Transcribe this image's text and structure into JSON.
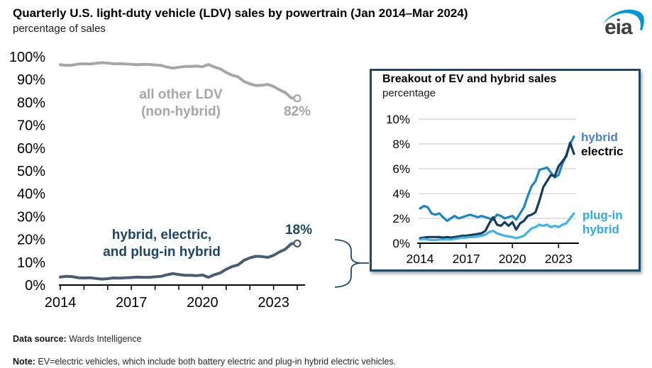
{
  "header": {
    "title": "Quarterly U.S. light-duty vehicle (LDV) sales by powertrain (Jan 2014–Mar 2024)",
    "subtitle": "percentage of sales",
    "logo": "eia"
  },
  "colors": {
    "logo_swoosh": "#0096d7",
    "axis": "#000000",
    "grid": "#d9d9d9",
    "inset_border": "#1d4a66",
    "all_other_line": "#a6a6a6",
    "combined_line": "#4a5b73",
    "combined_label": "#1c4566",
    "hybrid_line": "#1b85c6",
    "hybrid_label": "#4e81c2",
    "electric_line": "#17395c",
    "electric_label": "#000000",
    "plugin_line": "#3fb3e6",
    "plugin_label": "#2fa9e1"
  },
  "chart_data": [
    {
      "id": "main",
      "type": "line",
      "title": "Quarterly U.S. light-duty vehicle (LDV) sales by powertrain (Jan 2014–Mar 2024)",
      "ylabel": "percentage of sales",
      "x_start": 2014.0,
      "x_step_years": 0.25,
      "xlim": [
        2014,
        2024.25
      ],
      "ylim": [
        0,
        100
      ],
      "ytick_step": 10,
      "ytick_suffix": "%",
      "grid": false,
      "xtick_years": [
        2014,
        2015,
        2016,
        2017,
        2018,
        2019,
        2020,
        2021,
        2022,
        2023,
        2024
      ],
      "xtick_label_years": [
        2014,
        2017,
        2020,
        2023
      ],
      "series": [
        {
          "key": "all-other-ldv",
          "name": "all other LDV (non-hybrid)",
          "label_lines": [
            "all other LDV",
            "(non-hybrid)"
          ],
          "end_label": "82%",
          "color": "#a6a6a6",
          "values": [
            96.5,
            96.2,
            96.3,
            96.8,
            96.9,
            96.8,
            97.1,
            97.4,
            97.2,
            96.9,
            97.0,
            96.8,
            96.7,
            96.5,
            96.6,
            96.6,
            96.4,
            96.2,
            95.5,
            95.0,
            95.4,
            95.7,
            95.7,
            95.9,
            95.6,
            96.6,
            95.5,
            94.7,
            93.1,
            91.9,
            91.2,
            89.2,
            88.1,
            87.4,
            87.5,
            87.9,
            87.0,
            85.5,
            84.3,
            81.9,
            81.8
          ]
        },
        {
          "key": "hybrid-electric-plugin",
          "name": "hybrid, electric, and plug-in hybrid",
          "label_lines": [
            "hybrid, electric,",
            "and plug-in hybrid"
          ],
          "end_label": "18%",
          "color": "#4a5b73",
          "values": [
            3.5,
            3.8,
            3.7,
            3.2,
            3.1,
            3.2,
            2.9,
            2.6,
            2.8,
            3.1,
            3.0,
            3.2,
            3.3,
            3.5,
            3.4,
            3.4,
            3.6,
            3.8,
            4.5,
            5.0,
            4.6,
            4.3,
            4.3,
            4.1,
            4.4,
            3.4,
            4.5,
            5.3,
            6.9,
            8.1,
            8.8,
            10.8,
            11.9,
            12.6,
            12.5,
            12.1,
            13.0,
            14.5,
            15.7,
            18.1,
            18.2
          ]
        }
      ]
    },
    {
      "id": "inset",
      "type": "line",
      "title": "Breakout of EV and hybrid sales",
      "subtitle": "percentage",
      "x_start": 2014.0,
      "x_step_years": 0.25,
      "xlim": [
        2014,
        2024.25
      ],
      "ylim": [
        0,
        10
      ],
      "ytick_step": 2,
      "ytick_suffix": "%",
      "grid": true,
      "xtick_years": [
        2014,
        2017,
        2020,
        2023
      ],
      "xtick_label_years": [
        2014,
        2017,
        2020,
        2023
      ],
      "series": [
        {
          "key": "hybrid",
          "name": "hybrid",
          "label_lines": [
            "hybrid"
          ],
          "color": "#1b85c6",
          "values": [
            2.8,
            3.0,
            2.9,
            2.4,
            2.3,
            2.4,
            2.1,
            1.8,
            2.0,
            2.2,
            2.0,
            2.1,
            2.2,
            2.3,
            2.2,
            2.1,
            2.2,
            2.1,
            2.0,
            1.9,
            2.3,
            2.2,
            2.0,
            2.1,
            2.2,
            1.9,
            2.4,
            2.9,
            3.8,
            4.6,
            5.0,
            5.9,
            6.0,
            6.1,
            5.7,
            5.3,
            5.5,
            6.4,
            7.1,
            8.0,
            8.6
          ]
        },
        {
          "key": "electric",
          "name": "electric",
          "label_lines": [
            "electric"
          ],
          "color": "#17395c",
          "values": [
            0.4,
            0.45,
            0.5,
            0.5,
            0.5,
            0.5,
            0.45,
            0.5,
            0.45,
            0.5,
            0.55,
            0.6,
            0.6,
            0.65,
            0.7,
            0.75,
            0.8,
            1.0,
            1.6,
            2.1,
            1.5,
            1.4,
            1.7,
            1.4,
            1.7,
            1.1,
            1.6,
            1.8,
            2.2,
            2.3,
            2.5,
            3.4,
            4.5,
            5.0,
            5.5,
            5.4,
            6.2,
            6.6,
            7.0,
            8.1,
            7.2
          ]
        },
        {
          "key": "plug-in-hybrid",
          "name": "plug-in hybrid",
          "label_lines": [
            "plug-in",
            "hybrid"
          ],
          "color": "#3fb3e6",
          "values": [
            0.3,
            0.35,
            0.3,
            0.25,
            0.25,
            0.3,
            0.3,
            0.3,
            0.3,
            0.35,
            0.4,
            0.45,
            0.45,
            0.5,
            0.5,
            0.55,
            0.6,
            0.7,
            0.9,
            1.0,
            0.8,
            0.7,
            0.6,
            0.55,
            0.5,
            0.4,
            0.5,
            0.6,
            0.9,
            1.2,
            1.3,
            1.5,
            1.4,
            1.5,
            1.3,
            1.4,
            1.3,
            1.5,
            1.6,
            2.0,
            2.4
          ]
        }
      ]
    }
  ],
  "footer": {
    "source_label": "Data source:",
    "source_text": " Wards Intelligence",
    "note_label": "Note:",
    "note_text": " EV=electric vehicles, which include both battery electric and plug-in hybrid electric vehicles."
  }
}
